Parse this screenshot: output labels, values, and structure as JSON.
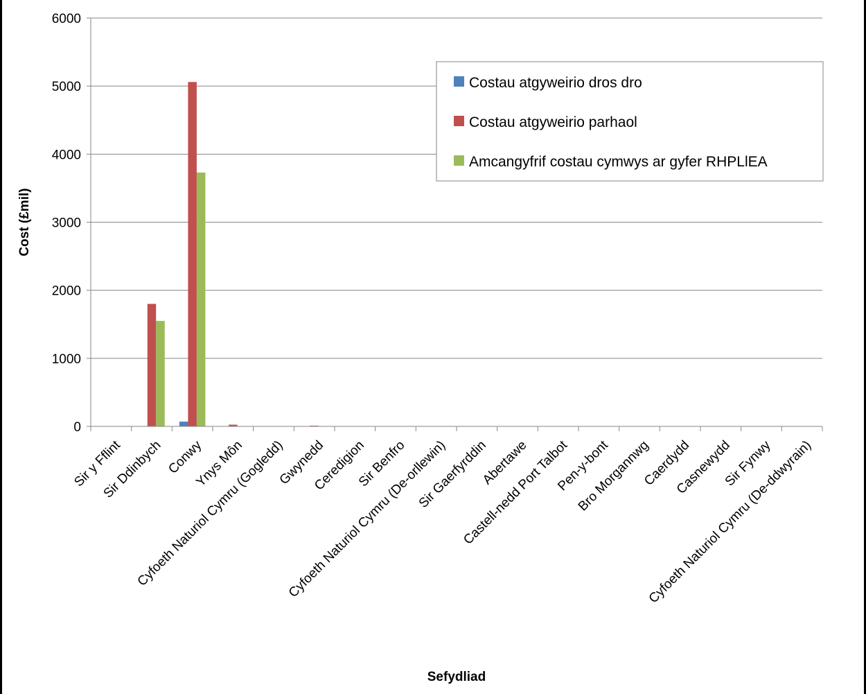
{
  "chart_data": {
    "type": "bar",
    "title": "",
    "xlabel": "Sefydliad",
    "ylabel": "Cost (£mil)",
    "ylim": [
      0,
      6000
    ],
    "yticks": [
      0,
      1000,
      2000,
      3000,
      4000,
      5000,
      6000
    ],
    "grid": true,
    "legend_position": "top-right",
    "categories": [
      "Sir y Fflint",
      "Sir Ddinbych",
      "Conwy",
      "Ynys Môn",
      "Cyfoeth Naturiol Cymru (Gogledd)",
      "Gwynedd",
      "Ceredigion",
      "Sir Benfro",
      "Cyfoeth Naturiol Cymru (De-orllewin)",
      "Sir Gaerfyrddin",
      "Abertawe",
      "Castell-nedd Port Talbot",
      "Pen-y-bont",
      "Bro Morgannwg",
      "Caerdydd",
      "Casnewydd",
      "Sir Fynwy",
      "Cyfoeth Naturiol Cymru (De-ddwyrain)"
    ],
    "series": [
      {
        "name": "Costau atgyweirio dros dro",
        "color": "#4F81BD",
        "values": [
          0,
          0,
          70,
          0,
          0,
          0,
          0,
          0,
          0,
          0,
          0,
          0,
          0,
          0,
          0,
          0,
          0,
          0
        ]
      },
      {
        "name": "Costau atgyweirio parhaol",
        "color": "#C0504D",
        "values": [
          0,
          1800,
          5060,
          25,
          0,
          10,
          0,
          0,
          0,
          0,
          0,
          0,
          0,
          0,
          0,
          0,
          0,
          0
        ]
      },
      {
        "name": "Amcangyfrif costau cymwys ar gyfer RHPLlEA",
        "color": "#9BBB59",
        "values": [
          0,
          1550,
          3730,
          0,
          0,
          0,
          0,
          0,
          0,
          0,
          0,
          0,
          0,
          0,
          0,
          0,
          0,
          0
        ]
      }
    ]
  }
}
